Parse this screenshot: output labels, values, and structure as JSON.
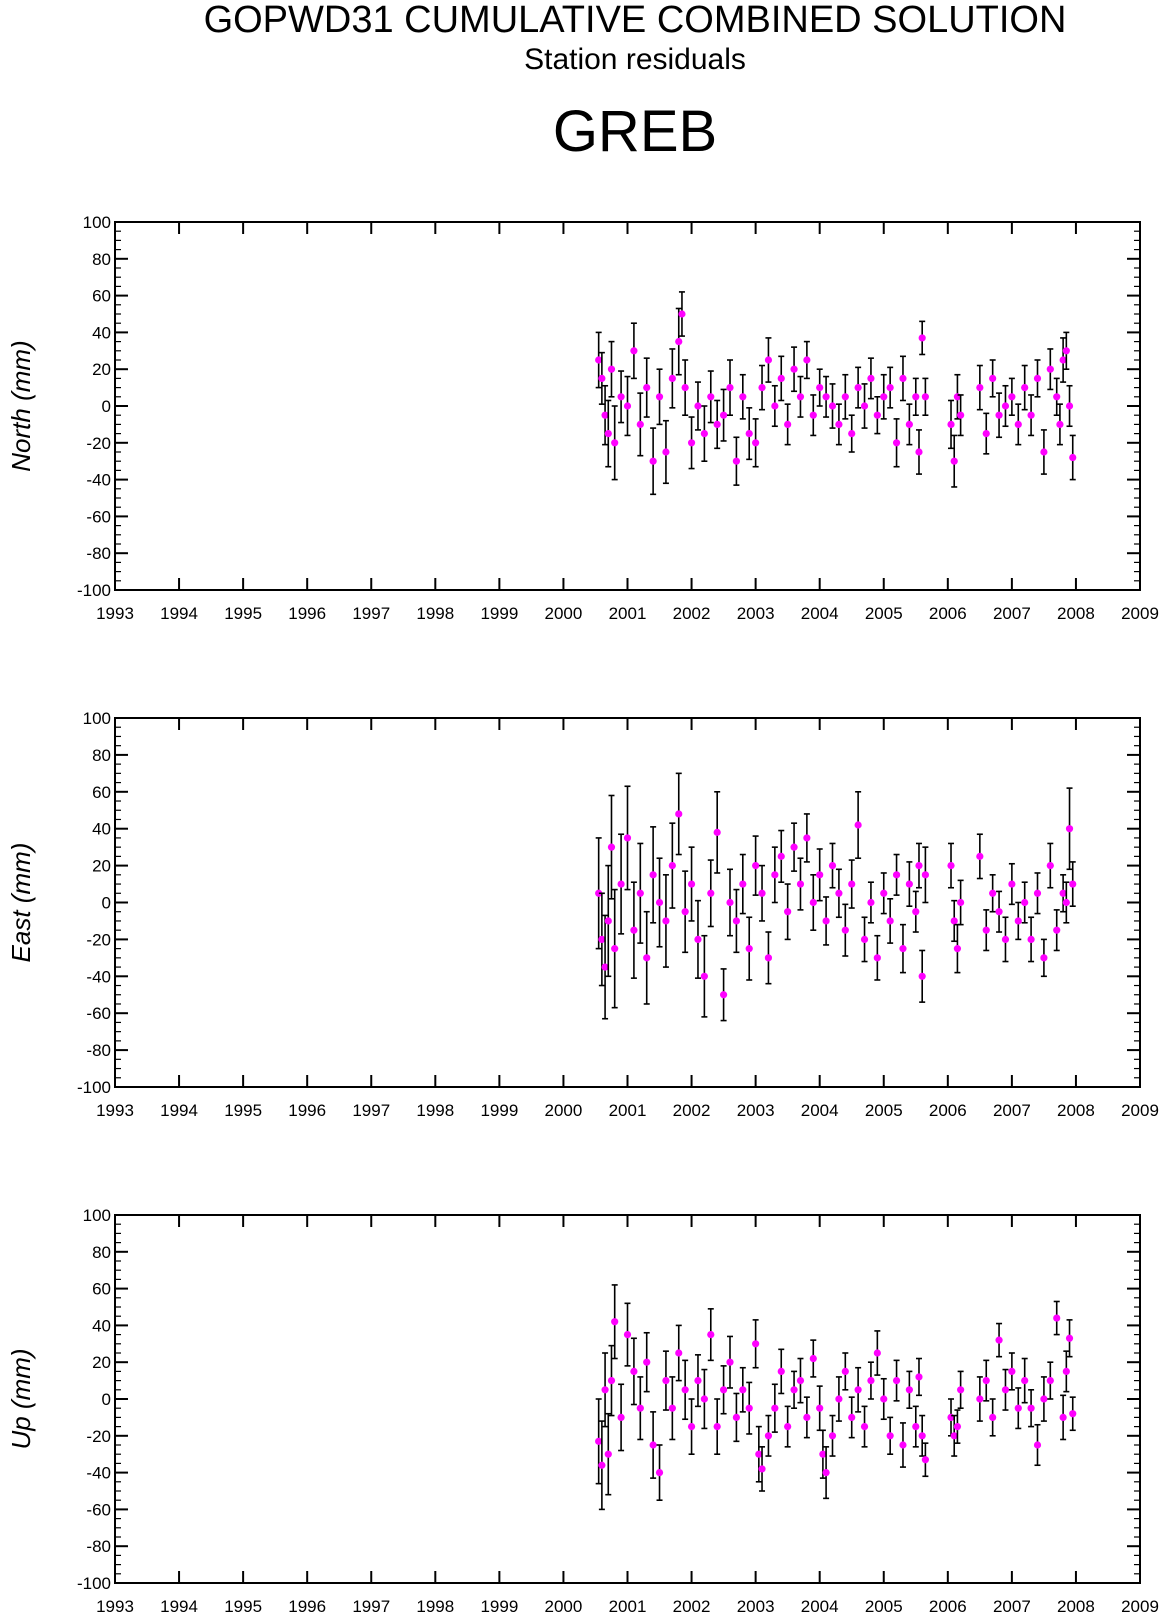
{
  "header": {
    "title": "GOPWD31 CUMULATIVE COMBINED SOLUTION",
    "subtitle": "Station residuals",
    "station": "GREB"
  },
  "colors": {
    "marker": "#ff00ff",
    "errorbar": "#000000",
    "axis": "#000000"
  },
  "chart_data": [
    {
      "type": "scatter",
      "ylabel": "North (mm)",
      "xlim": [
        1993,
        2009
      ],
      "ylim": [
        -100,
        100
      ],
      "xticks": [
        "1993",
        "1994",
        "1995",
        "1996",
        "1997",
        "1998",
        "1999",
        "2000",
        "2001",
        "2002",
        "2003",
        "2004",
        "2005",
        "2006",
        "2007",
        "2008",
        "2009"
      ],
      "yticks": [
        "100",
        "80",
        "60",
        "40",
        "20",
        "0",
        "-20",
        "-40",
        "-60",
        "-80",
        "-100"
      ],
      "series": [
        {
          "x": [
            2000.55,
            2000.6,
            2000.65,
            2000.7,
            2000.75,
            2000.8,
            2000.9,
            2001.0,
            2001.1,
            2001.2,
            2001.3,
            2001.4,
            2001.5,
            2001.6,
            2001.7,
            2001.8,
            2001.85,
            2001.9,
            2002.0,
            2002.1,
            2002.2,
            2002.3,
            2002.4,
            2002.5,
            2002.6,
            2002.7,
            2002.8,
            2002.9,
            2003.0,
            2003.1,
            2003.2,
            2003.3,
            2003.4,
            2003.5,
            2003.6,
            2003.7,
            2003.8,
            2003.9,
            2004.0,
            2004.1,
            2004.2,
            2004.3,
            2004.4,
            2004.5,
            2004.6,
            2004.7,
            2004.8,
            2004.9,
            2005.0,
            2005.1,
            2005.2,
            2005.3,
            2005.4,
            2005.5,
            2005.55,
            2005.6,
            2005.65,
            2006.05,
            2006.1,
            2006.15,
            2006.2,
            2006.5,
            2006.6,
            2006.7,
            2006.8,
            2006.9,
            2007.0,
            2007.1,
            2007.2,
            2007.3,
            2007.4,
            2007.5,
            2007.6,
            2007.7,
            2007.75,
            2007.8,
            2007.85,
            2007.9,
            2007.95
          ],
          "y": [
            25,
            15,
            -5,
            -15,
            20,
            -20,
            5,
            0,
            30,
            -10,
            10,
            -30,
            5,
            -25,
            15,
            35,
            50,
            10,
            -20,
            0,
            -15,
            5,
            -10,
            -5,
            10,
            -30,
            5,
            -15,
            -20,
            10,
            25,
            0,
            15,
            -10,
            20,
            5,
            25,
            -5,
            10,
            5,
            0,
            -10,
            5,
            -15,
            10,
            0,
            15,
            -5,
            5,
            10,
            -20,
            15,
            -10,
            5,
            -25,
            37,
            5,
            -10,
            -30,
            5,
            -5,
            10,
            -15,
            15,
            -5,
            0,
            5,
            -10,
            10,
            -5,
            15,
            -25,
            20,
            5,
            -10,
            25,
            30,
            0,
            -28
          ],
          "err": [
            15,
            14,
            16,
            18,
            15,
            20,
            14,
            16,
            15,
            17,
            16,
            18,
            15,
            17,
            16,
            18,
            12,
            15,
            14,
            13,
            15,
            14,
            13,
            14,
            15,
            13,
            12,
            14,
            13,
            12,
            12,
            11,
            12,
            11,
            12,
            11,
            10,
            11,
            10,
            11,
            12,
            11,
            12,
            10,
            11,
            12,
            11,
            10,
            12,
            11,
            13,
            12,
            11,
            10,
            12,
            9,
            10,
            13,
            14,
            12,
            11,
            12,
            11,
            10,
            12,
            11,
            10,
            11,
            12,
            11,
            10,
            12,
            11,
            10,
            11,
            12,
            10,
            11,
            12
          ]
        }
      ]
    },
    {
      "type": "scatter",
      "ylabel": "East (mm)",
      "xlim": [
        1993,
        2009
      ],
      "ylim": [
        -100,
        100
      ],
      "xticks": [
        "1993",
        "1994",
        "1995",
        "1996",
        "1997",
        "1998",
        "1999",
        "2000",
        "2001",
        "2002",
        "2003",
        "2004",
        "2005",
        "2006",
        "2007",
        "2008",
        "2009"
      ],
      "yticks": [
        "100",
        "80",
        "60",
        "40",
        "20",
        "0",
        "-20",
        "-40",
        "-60",
        "-80",
        "-100"
      ],
      "series": [
        {
          "x": [
            2000.55,
            2000.6,
            2000.65,
            2000.7,
            2000.75,
            2000.8,
            2000.9,
            2001.0,
            2001.1,
            2001.2,
            2001.3,
            2001.4,
            2001.5,
            2001.6,
            2001.7,
            2001.8,
            2001.9,
            2002.0,
            2002.1,
            2002.2,
            2002.3,
            2002.4,
            2002.5,
            2002.6,
            2002.7,
            2002.8,
            2002.9,
            2003.0,
            2003.1,
            2003.2,
            2003.3,
            2003.4,
            2003.5,
            2003.6,
            2003.7,
            2003.8,
            2003.9,
            2004.0,
            2004.1,
            2004.2,
            2004.3,
            2004.4,
            2004.5,
            2004.6,
            2004.7,
            2004.8,
            2004.9,
            2005.0,
            2005.1,
            2005.2,
            2005.3,
            2005.4,
            2005.5,
            2005.55,
            2005.6,
            2005.65,
            2006.05,
            2006.1,
            2006.15,
            2006.2,
            2006.5,
            2006.6,
            2006.7,
            2006.8,
            2006.9,
            2007.0,
            2007.1,
            2007.2,
            2007.3,
            2007.4,
            2007.5,
            2007.6,
            2007.7,
            2007.8,
            2007.85,
            2007.9,
            2007.95
          ],
          "y": [
            5,
            -20,
            -35,
            -10,
            30,
            -25,
            10,
            35,
            -15,
            5,
            -30,
            15,
            0,
            -10,
            20,
            48,
            -5,
            10,
            -20,
            -40,
            5,
            38,
            -50,
            0,
            -10,
            10,
            -25,
            20,
            5,
            -30,
            15,
            25,
            -5,
            30,
            10,
            35,
            0,
            15,
            -10,
            20,
            5,
            -15,
            10,
            42,
            -20,
            0,
            -30,
            5,
            -10,
            15,
            -25,
            10,
            -5,
            20,
            -40,
            15,
            20,
            -10,
            -25,
            0,
            25,
            -15,
            5,
            -5,
            -20,
            10,
            -10,
            0,
            -20,
            5,
            -30,
            20,
            -15,
            5,
            0,
            40,
            10
          ],
          "err": [
            30,
            25,
            28,
            30,
            28,
            32,
            27,
            28,
            26,
            27,
            25,
            26,
            24,
            25,
            23,
            22,
            22,
            20,
            21,
            22,
            18,
            22,
            14,
            18,
            17,
            16,
            17,
            16,
            15,
            14,
            15,
            14,
            15,
            13,
            14,
            13,
            15,
            14,
            13,
            12,
            13,
            14,
            13,
            18,
            12,
            11,
            12,
            11,
            12,
            11,
            13,
            12,
            11,
            12,
            14,
            15,
            12,
            11,
            13,
            12,
            12,
            11,
            10,
            11,
            12,
            11,
            10,
            11,
            12,
            11,
            10,
            12,
            11,
            10,
            11,
            22,
            12
          ]
        }
      ]
    },
    {
      "type": "scatter",
      "ylabel": "Up (mm)",
      "xlim": [
        1993,
        2009
      ],
      "ylim": [
        -100,
        100
      ],
      "xticks": [
        "1993",
        "1994",
        "1995",
        "1996",
        "1997",
        "1998",
        "1999",
        "2000",
        "2001",
        "2002",
        "2003",
        "2004",
        "2005",
        "2006",
        "2007",
        "2008",
        "2009"
      ],
      "yticks": [
        "100",
        "80",
        "60",
        "40",
        "20",
        "0",
        "-20",
        "-40",
        "-60",
        "-80",
        "-100"
      ],
      "series": [
        {
          "x": [
            2000.55,
            2000.6,
            2000.65,
            2000.7,
            2000.75,
            2000.8,
            2000.9,
            2001.0,
            2001.1,
            2001.2,
            2001.3,
            2001.4,
            2001.5,
            2001.6,
            2001.7,
            2001.8,
            2001.9,
            2002.0,
            2002.1,
            2002.2,
            2002.3,
            2002.4,
            2002.5,
            2002.6,
            2002.7,
            2002.8,
            2002.9,
            2003.0,
            2003.05,
            2003.1,
            2003.2,
            2003.3,
            2003.4,
            2003.5,
            2003.6,
            2003.7,
            2003.8,
            2003.9,
            2004.0,
            2004.05,
            2004.1,
            2004.2,
            2004.3,
            2004.4,
            2004.5,
            2004.6,
            2004.7,
            2004.8,
            2004.9,
            2005.0,
            2005.1,
            2005.2,
            2005.3,
            2005.4,
            2005.5,
            2005.55,
            2005.6,
            2005.65,
            2006.05,
            2006.1,
            2006.15,
            2006.2,
            2006.5,
            2006.6,
            2006.7,
            2006.8,
            2006.9,
            2007.0,
            2007.1,
            2007.2,
            2007.3,
            2007.4,
            2007.5,
            2007.6,
            2007.7,
            2007.8,
            2007.85,
            2007.9,
            2007.95
          ],
          "y": [
            -23,
            -36,
            5,
            -30,
            10,
            42,
            -10,
            35,
            15,
            -5,
            20,
            -25,
            -40,
            10,
            -5,
            25,
            5,
            -15,
            10,
            0,
            35,
            -15,
            5,
            20,
            -10,
            5,
            -5,
            30,
            -30,
            -38,
            -20,
            -5,
            15,
            -15,
            5,
            10,
            -10,
            22,
            -5,
            -30,
            -40,
            -20,
            0,
            15,
            -10,
            5,
            -15,
            10,
            25,
            0,
            -20,
            10,
            -25,
            5,
            -15,
            12,
            -20,
            -33,
            -10,
            -20,
            -15,
            5,
            0,
            10,
            -10,
            32,
            5,
            15,
            -5,
            10,
            -5,
            -25,
            0,
            10,
            44,
            -10,
            15,
            33,
            -8
          ],
          "err": [
            23,
            24,
            20,
            22,
            19,
            20,
            18,
            17,
            18,
            17,
            16,
            18,
            15,
            16,
            17,
            15,
            16,
            15,
            14,
            16,
            14,
            15,
            13,
            14,
            13,
            12,
            14,
            13,
            15,
            12,
            11,
            13,
            12,
            11,
            10,
            12,
            11,
            10,
            12,
            13,
            14,
            11,
            12,
            10,
            11,
            12,
            11,
            10,
            12,
            11,
            10,
            11,
            12,
            10,
            11,
            10,
            11,
            9,
            10,
            11,
            9,
            10,
            12,
            11,
            10,
            9,
            11,
            10,
            11,
            12,
            10,
            11,
            12,
            10,
            9,
            12,
            11,
            10,
            9
          ]
        }
      ]
    }
  ]
}
